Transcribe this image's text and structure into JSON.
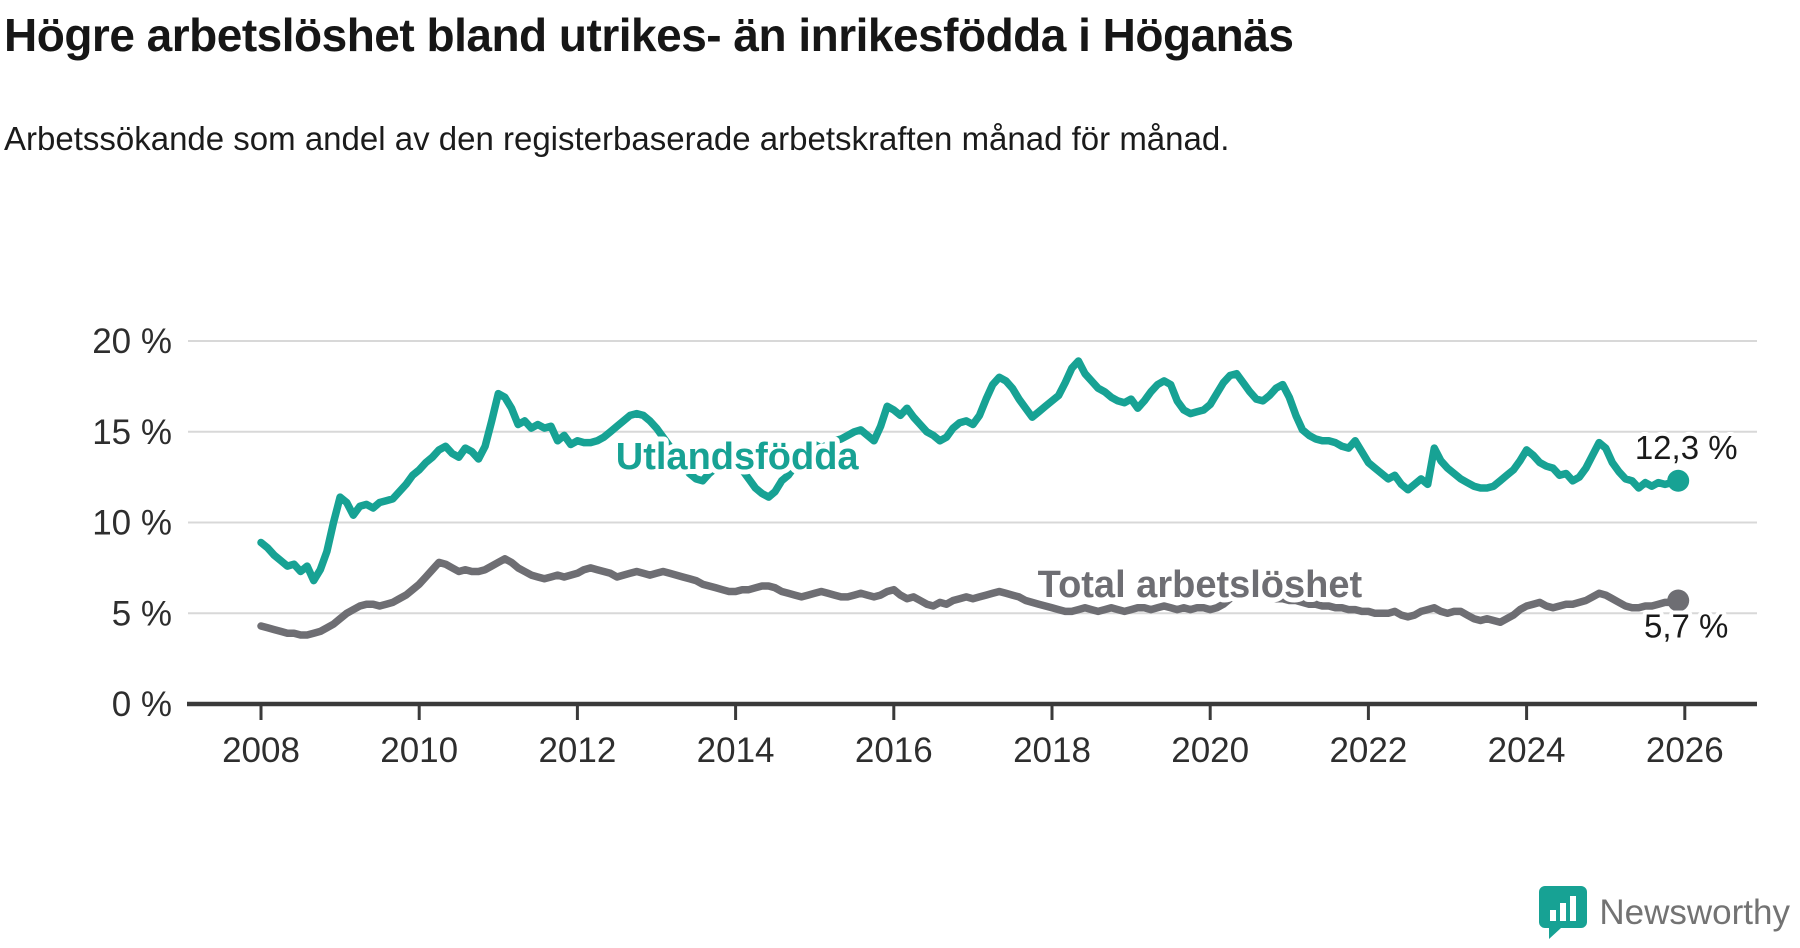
{
  "header": {
    "title": "Högre arbetslöshet bland utrikes- än inrikesfödda i Höganäs",
    "subtitle": "Arbetssökande som andel av den registerbaserade arbetskraften månad för månad."
  },
  "branding": {
    "name": "Newsworthy",
    "icon": "newsworthy-logo-icon",
    "icon_color": "#17a294",
    "text_color": "#737373"
  },
  "chart_data": {
    "type": "line",
    "title": "Högre arbetslöshet bland utrikes- än inrikesfödda i Höganäs",
    "subtitle": "Arbetssökande som andel av den registerbaserade arbetskraften månad för månad.",
    "grid": true,
    "legend": "inline-series-labels",
    "colors": {
      "grid_line": "#d8d8d8",
      "axis_line": "#3a3a3a",
      "tick_text": "#2e2e2e",
      "value_label_text": "#1a1a1a",
      "halo": "#ffffff"
    },
    "x_axis": {
      "min": 2007.3,
      "max": 2026.9,
      "tick_values": [
        2008,
        2010,
        2012,
        2014,
        2016,
        2018,
        2020,
        2022,
        2024,
        2026
      ],
      "tick_labels": [
        "2008",
        "2010",
        "2012",
        "2014",
        "2016",
        "2018",
        "2020",
        "2022",
        "2024",
        "2026"
      ]
    },
    "y_axis": {
      "min": 0,
      "max": 21.5,
      "unit": "%",
      "tick_values": [
        0,
        5,
        10,
        15,
        20
      ],
      "tick_labels": [
        "0 %",
        "5 %",
        "10 %",
        "15 %",
        "20 %"
      ]
    },
    "series": [
      {
        "id": "total-arbetsloshet",
        "name": "Total arbetslöshet",
        "color": "#6e6e73",
        "start_year": 2008,
        "frequency": "monthly",
        "last_value_label": "5,7 %",
        "value_label_position": "below",
        "label_anchor": {
          "year": 2019.87,
          "value": 6.56
        },
        "values": [
          4.3,
          4.2,
          4.1,
          4.0,
          3.9,
          3.9,
          3.8,
          3.8,
          3.9,
          4.0,
          4.2,
          4.4,
          4.7,
          5.0,
          5.2,
          5.4,
          5.5,
          5.5,
          5.4,
          5.5,
          5.6,
          5.8,
          6.0,
          6.3,
          6.6,
          7.0,
          7.4,
          7.8,
          7.7,
          7.5,
          7.3,
          7.4,
          7.3,
          7.3,
          7.4,
          7.6,
          7.8,
          8.0,
          7.8,
          7.5,
          7.3,
          7.1,
          7.0,
          6.9,
          7.0,
          7.1,
          7.0,
          7.1,
          7.2,
          7.4,
          7.5,
          7.4,
          7.3,
          7.2,
          7.0,
          7.1,
          7.2,
          7.3,
          7.2,
          7.1,
          7.2,
          7.3,
          7.2,
          7.1,
          7.0,
          6.9,
          6.8,
          6.6,
          6.5,
          6.4,
          6.3,
          6.2,
          6.2,
          6.3,
          6.3,
          6.4,
          6.5,
          6.5,
          6.4,
          6.2,
          6.1,
          6.0,
          5.9,
          6.0,
          6.1,
          6.2,
          6.1,
          6.0,
          5.9,
          5.9,
          6.0,
          6.1,
          6.0,
          5.9,
          6.0,
          6.2,
          6.3,
          6.0,
          5.8,
          5.9,
          5.7,
          5.5,
          5.4,
          5.6,
          5.5,
          5.7,
          5.8,
          5.9,
          5.8,
          5.9,
          6.0,
          6.1,
          6.2,
          6.1,
          6.0,
          5.9,
          5.7,
          5.6,
          5.5,
          5.4,
          5.3,
          5.2,
          5.1,
          5.1,
          5.2,
          5.3,
          5.2,
          5.1,
          5.2,
          5.3,
          5.2,
          5.1,
          5.2,
          5.3,
          5.3,
          5.2,
          5.3,
          5.4,
          5.3,
          5.2,
          5.3,
          5.2,
          5.3,
          5.3,
          5.2,
          5.3,
          5.5,
          5.8,
          6.0,
          6.1,
          6.2,
          6.1,
          6.0,
          5.9,
          5.8,
          5.8,
          5.7,
          5.7,
          5.6,
          5.5,
          5.5,
          5.4,
          5.4,
          5.3,
          5.3,
          5.2,
          5.2,
          5.1,
          5.1,
          5.0,
          5.0,
          5.0,
          5.1,
          4.9,
          4.8,
          4.9,
          5.1,
          5.2,
          5.3,
          5.1,
          5.0,
          5.1,
          5.1,
          4.9,
          4.7,
          4.6,
          4.7,
          4.6,
          4.5,
          4.7,
          4.9,
          5.2,
          5.4,
          5.5,
          5.6,
          5.4,
          5.3,
          5.4,
          5.5,
          5.5,
          5.6,
          5.7,
          5.9,
          6.1,
          6.0,
          5.8,
          5.6,
          5.4,
          5.3,
          5.3,
          5.4,
          5.4,
          5.5,
          5.6,
          5.6,
          5.7
        ]
      },
      {
        "id": "utlandsfodda",
        "name": "Utlandsfödda",
        "color": "#17a294",
        "start_year": 2008,
        "frequency": "monthly",
        "last_value_label": "12,3 %",
        "value_label_position": "above",
        "label_anchor": {
          "year": 2014.02,
          "value": 13.6
        },
        "values": [
          8.9,
          8.6,
          8.2,
          7.9,
          7.6,
          7.7,
          7.3,
          7.6,
          6.8,
          7.4,
          8.4,
          10.0,
          11.4,
          11.1,
          10.4,
          10.9,
          11.0,
          10.8,
          11.1,
          11.2,
          11.3,
          11.7,
          12.1,
          12.6,
          12.9,
          13.3,
          13.6,
          14.0,
          14.2,
          13.8,
          13.6,
          14.1,
          13.9,
          13.5,
          14.2,
          15.6,
          17.1,
          16.9,
          16.3,
          15.4,
          15.6,
          15.2,
          15.4,
          15.2,
          15.3,
          14.5,
          14.8,
          14.3,
          14.5,
          14.4,
          14.4,
          14.5,
          14.7,
          15.0,
          15.3,
          15.6,
          15.9,
          16.0,
          15.9,
          15.6,
          15.2,
          14.7,
          14.2,
          13.7,
          13.2,
          12.7,
          12.4,
          12.3,
          12.7,
          13.0,
          13.2,
          13.4,
          13.3,
          12.9,
          12.4,
          11.9,
          11.6,
          11.4,
          11.7,
          12.3,
          12.6,
          13.1,
          13.7,
          14.1,
          14.3,
          14.1,
          14.3,
          14.5,
          14.6,
          14.8,
          15.0,
          15.1,
          14.8,
          14.5,
          15.3,
          16.4,
          16.2,
          15.9,
          16.3,
          15.8,
          15.4,
          15.0,
          14.8,
          14.5,
          14.7,
          15.2,
          15.5,
          15.6,
          15.4,
          15.9,
          16.8,
          17.6,
          18.0,
          17.8,
          17.4,
          16.8,
          16.3,
          15.8,
          16.1,
          16.4,
          16.7,
          17.0,
          17.7,
          18.5,
          18.9,
          18.2,
          17.8,
          17.4,
          17.2,
          16.9,
          16.7,
          16.6,
          16.8,
          16.3,
          16.7,
          17.2,
          17.6,
          17.8,
          17.6,
          16.7,
          16.2,
          16.0,
          16.1,
          16.2,
          16.5,
          17.1,
          17.7,
          18.1,
          18.2,
          17.7,
          17.2,
          16.8,
          16.7,
          17.0,
          17.4,
          17.6,
          16.9,
          15.9,
          15.1,
          14.8,
          14.6,
          14.5,
          14.5,
          14.4,
          14.2,
          14.1,
          14.5,
          13.9,
          13.3,
          13.0,
          12.7,
          12.4,
          12.6,
          12.1,
          11.8,
          12.1,
          12.4,
          12.1,
          14.1,
          13.4,
          13.0,
          12.7,
          12.4,
          12.2,
          12.0,
          11.9,
          11.9,
          12.0,
          12.3,
          12.6,
          12.9,
          13.4,
          14.0,
          13.7,
          13.3,
          13.1,
          13.0,
          12.6,
          12.7,
          12.3,
          12.5,
          13.0,
          13.7,
          14.4,
          14.1,
          13.3,
          12.8,
          12.4,
          12.3,
          11.9,
          12.2,
          12.0,
          12.2,
          12.1,
          12.2,
          12.3
        ]
      }
    ]
  }
}
